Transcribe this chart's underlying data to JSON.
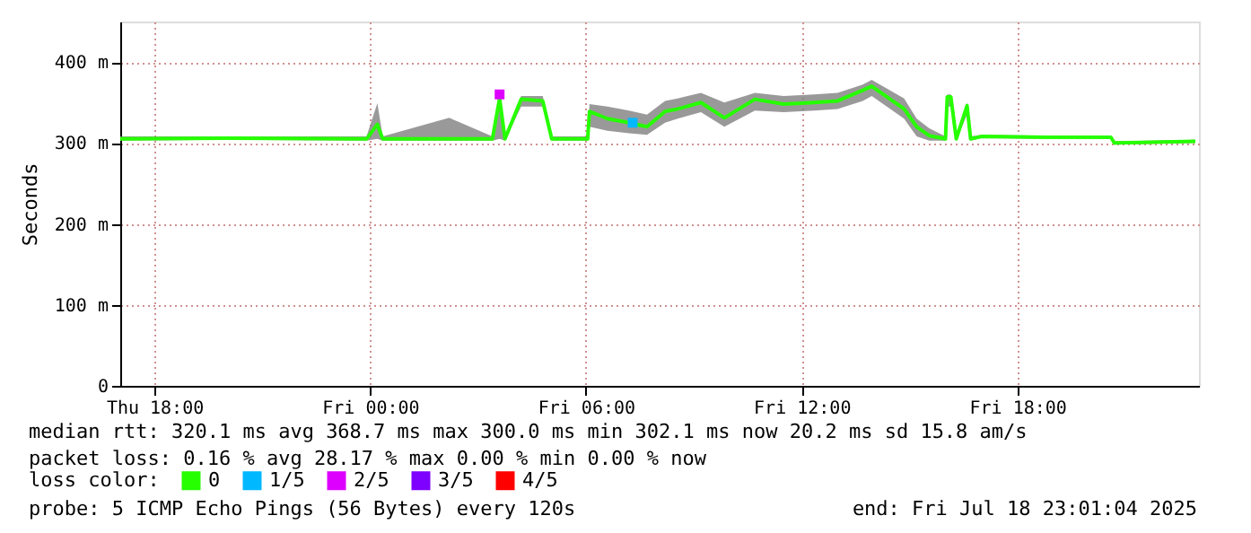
{
  "chart_data": {
    "type": "line",
    "ylabel": "Seconds",
    "legend_title": "loss color:",
    "x": [
      "2025-07-17T17:03",
      "2025-07-17T20:00",
      "2025-07-17T23:54",
      "2025-07-18T00:12",
      "2025-07-18T00:21",
      "2025-07-18T02:12",
      "2025-07-18T03:24",
      "2025-07-18T03:36",
      "2025-07-18T03:45",
      "2025-07-18T04:12",
      "2025-07-18T04:48",
      "2025-07-18T05:03",
      "2025-07-18T06:03",
      "2025-07-18T06:06",
      "2025-07-18T06:36",
      "2025-07-18T07:12",
      "2025-07-18T07:42",
      "2025-07-18T08:12",
      "2025-07-18T08:33",
      "2025-07-18T09:12",
      "2025-07-18T09:51",
      "2025-07-18T10:42",
      "2025-07-18T11:30",
      "2025-07-18T12:21",
      "2025-07-18T13:00",
      "2025-07-18T13:42",
      "2025-07-18T13:57",
      "2025-07-18T14:51",
      "2025-07-18T15:12",
      "2025-07-18T15:33",
      "2025-07-18T16:00",
      "2025-07-18T16:03",
      "2025-07-18T16:09",
      "2025-07-18T16:18",
      "2025-07-18T16:36",
      "2025-07-18T16:42",
      "2025-07-18T17:00",
      "2025-07-18T18:51",
      "2025-07-18T20:36",
      "2025-07-18T20:42",
      "2025-07-18T22:57"
    ],
    "series": [
      {
        "name": "0",
        "color": "#26ff00",
        "values": [
          305,
          306,
          305,
          323,
          305,
          305,
          305,
          355,
          305,
          354,
          352,
          305,
          305,
          339,
          330,
          325,
          320,
          339,
          342,
          350,
          331,
          354,
          348,
          350,
          352,
          365,
          370,
          342,
          320,
          309,
          305,
          357,
          357,
          305,
          346,
          305,
          308,
          307,
          307,
          300,
          302
        ],
        "lower": [
          303,
          304,
          303,
          305,
          303,
          303,
          303,
          305,
          303,
          345,
          345,
          303,
          303,
          320,
          315,
          312,
          310,
          325,
          330,
          338,
          320,
          340,
          338,
          340,
          342,
          352,
          358,
          330,
          308,
          303,
          303,
          345,
          345,
          303,
          335,
          303,
          306,
          305,
          305,
          298,
          300
        ],
        "upper": [
          308,
          308,
          308,
          349,
          308,
          331,
          308,
          360,
          308,
          358,
          358,
          308,
          308,
          348,
          345,
          340,
          335,
          352,
          355,
          362,
          350,
          362,
          358,
          360,
          362,
          372,
          378,
          355,
          330,
          318,
          308,
          360,
          360,
          308,
          350,
          308,
          310,
          309,
          309,
          302,
          304
        ]
      },
      {
        "name": "1/5",
        "color": "#00b8ff",
        "type": "scatter",
        "marker": "square",
        "x": [
          "2025-07-18T07:18"
        ],
        "values": [
          325
        ]
      },
      {
        "name": "2/5",
        "color": "#dd00ff",
        "type": "scatter",
        "marker": "square",
        "x": [
          "2025-07-18T03:36"
        ],
        "values": [
          360
        ]
      },
      {
        "name": "3/5",
        "color": "#7e00ff",
        "type": "scatter",
        "marker": "square",
        "values": [
          null,
          null,
          null,
          null,
          null,
          null,
          null,
          null,
          null,
          null,
          null,
          null,
          null,
          null,
          null,
          null,
          null,
          null,
          null,
          null,
          null,
          null,
          null,
          null,
          null,
          null,
          null,
          null,
          null,
          null,
          null,
          null,
          null,
          null,
          null,
          null,
          null,
          null,
          null,
          null,
          null
        ]
      },
      {
        "name": "4/5",
        "color": "#ff0000",
        "type": "scatter",
        "marker": "square",
        "values": [
          null,
          null,
          null,
          null,
          null,
          null,
          null,
          null,
          null,
          null,
          null,
          null,
          null,
          null,
          null,
          null,
          null,
          null,
          null,
          null,
          null,
          null,
          null,
          null,
          null,
          null,
          null,
          null,
          null,
          null,
          null,
          null,
          null,
          null,
          null,
          null,
          null,
          null,
          null,
          null,
          null
        ]
      }
    ],
    "xlim": [
      "2025-07-17T17:03",
      "2025-07-18T23:03"
    ],
    "xticks": [
      {
        "value": "2025-07-17T18:00",
        "label": "Thu 18:00"
      },
      {
        "value": "2025-07-18T00:00",
        "label": "Fri 00:00"
      },
      {
        "value": "2025-07-18T06:00",
        "label": "Fri 06:00"
      },
      {
        "value": "2025-07-18T12:00",
        "label": "Fri 12:00"
      },
      {
        "value": "2025-07-18T18:00",
        "label": "Fri 18:00"
      }
    ],
    "ylim": [
      0,
      450
    ],
    "yticks": [
      0,
      {
        "value": 100,
        "label": "100 m"
      },
      {
        "value": 200,
        "label": "200 m"
      },
      {
        "value": 300,
        "label": "300 m"
      },
      {
        "value": 400,
        "label": "400 m"
      }
    ],
    "grid": true,
    "legend": "bottom",
    "marker": "none",
    "line_style": "solid",
    "annotations": [
      "median rtt:  320.1 ms avg  368.7 ms max  300.0 ms min  302.1 ms now  20.2 ms sd  15.8   am/s",
      "packet loss: 0.16 % avg  28.17 % max  0.00 % min  0.00 % now",
      "probe:       5 ICMP Echo Pings (56 Bytes) every 120s",
      "end: Fri Jul 18 23:01:04 2025"
    ]
  }
}
